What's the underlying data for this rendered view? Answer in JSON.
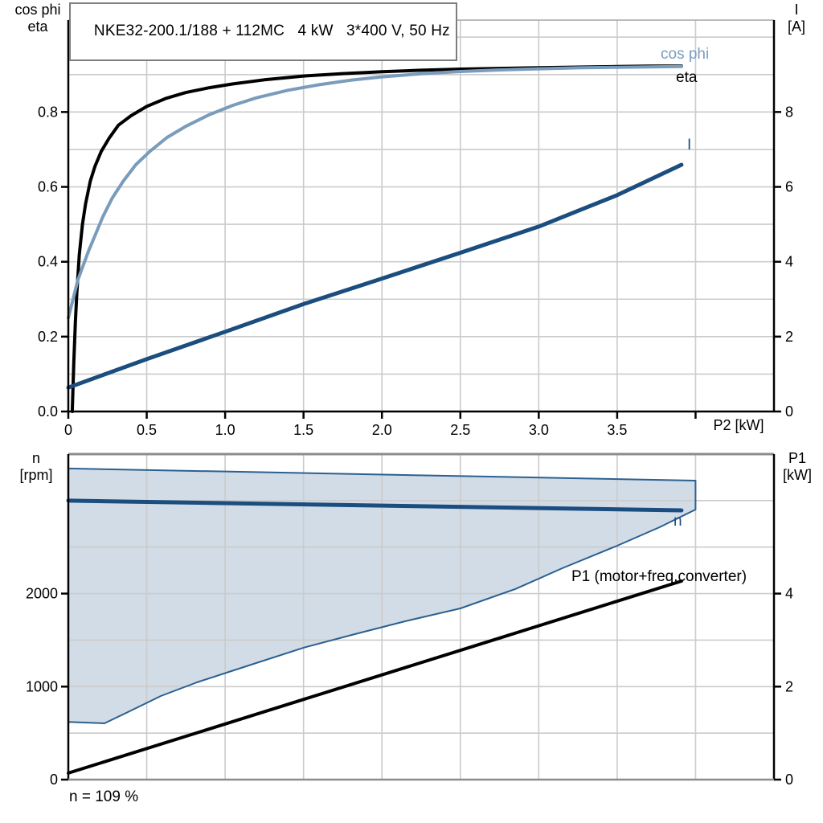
{
  "colors": {
    "steel_blue": "#7a9cbc",
    "navy": "#1b4d7f",
    "duty_fill": "#cfdae6",
    "duty_border": "#2b6090",
    "grid": "#cbcbcb",
    "axis_gray": "#8c8c8c",
    "black": "#000000"
  },
  "chart_data": [
    {
      "type": "line",
      "title": "NKE32-200.1/188 + 112MC   4 kW   3*400 V, 50 Hz",
      "x_axis": {
        "label": "P2 [kW]",
        "range": [
          0,
          4.5
        ],
        "grid_step": 0.5,
        "ticks": [
          {
            "v": 0,
            "t": "0"
          },
          {
            "v": 0.5,
            "t": "0.5"
          },
          {
            "v": 1,
            "t": "1.0"
          },
          {
            "v": 1.5,
            "t": "1.5"
          },
          {
            "v": 2,
            "t": "2.0"
          },
          {
            "v": 2.5,
            "t": "2.5"
          },
          {
            "v": 3,
            "t": "3.0"
          },
          {
            "v": 3.5,
            "t": "3.5"
          },
          {
            "v": 4,
            "t": ""
          }
        ]
      },
      "y_left": {
        "label_lines": [
          "cos phi",
          "eta"
        ],
        "range": [
          0,
          1.0455
        ],
        "grid_step": 0.1,
        "grid_max": 1.0,
        "ticks": [
          {
            "v": 0,
            "t": "0.0"
          },
          {
            "v": 0.2,
            "t": "0.2"
          },
          {
            "v": 0.4,
            "t": "0.4"
          },
          {
            "v": 0.6,
            "t": "0.6"
          },
          {
            "v": 0.8,
            "t": "0.8"
          }
        ]
      },
      "y_right": {
        "label_lines": [
          "I",
          "[A]"
        ],
        "range": [
          0,
          10.455
        ],
        "ticks": [
          {
            "v": 0,
            "t": "0"
          },
          {
            "v": 2,
            "t": "2"
          },
          {
            "v": 4,
            "t": "4"
          },
          {
            "v": 6,
            "t": "6"
          },
          {
            "v": 8,
            "t": "8"
          }
        ]
      },
      "series": [
        {
          "name": "eta",
          "label": "eta",
          "axis": "left",
          "color": "#000000",
          "width": 4,
          "points": [
            [
              0.025,
              0
            ],
            [
              0.035,
              0.13
            ],
            [
              0.045,
              0.24
            ],
            [
              0.055,
              0.32
            ],
            [
              0.07,
              0.42
            ],
            [
              0.09,
              0.5
            ],
            [
              0.11,
              0.555
            ],
            [
              0.14,
              0.615
            ],
            [
              0.17,
              0.655
            ],
            [
              0.21,
              0.695
            ],
            [
              0.26,
              0.73
            ],
            [
              0.32,
              0.765
            ],
            [
              0.4,
              0.79
            ],
            [
              0.5,
              0.815
            ],
            [
              0.62,
              0.836
            ],
            [
              0.75,
              0.852
            ],
            [
              0.9,
              0.865
            ],
            [
              1.05,
              0.875
            ],
            [
              1.25,
              0.886
            ],
            [
              1.5,
              0.896
            ],
            [
              1.75,
              0.9025
            ],
            [
              2.0,
              0.9075
            ],
            [
              2.25,
              0.9115
            ],
            [
              2.5,
              0.9145
            ],
            [
              2.75,
              0.9165
            ],
            [
              3.0,
              0.9185
            ],
            [
              3.25,
              0.92
            ],
            [
              3.5,
              0.9215
            ],
            [
              3.7,
              0.9225
            ],
            [
              3.91,
              0.923
            ]
          ]
        },
        {
          "name": "cos phi",
          "label": "cos phi",
          "axis": "left",
          "color": "#7a9cbc",
          "width": 4,
          "points": [
            [
              0,
              0.25
            ],
            [
              0.03,
              0.3
            ],
            [
              0.06,
              0.35
            ],
            [
              0.09,
              0.385
            ],
            [
              0.13,
              0.43
            ],
            [
              0.17,
              0.47
            ],
            [
              0.22,
              0.52
            ],
            [
              0.28,
              0.57
            ],
            [
              0.35,
              0.615
            ],
            [
              0.43,
              0.659
            ],
            [
              0.52,
              0.695
            ],
            [
              0.63,
              0.732
            ],
            [
              0.75,
              0.762
            ],
            [
              0.9,
              0.793
            ],
            [
              1.05,
              0.818
            ],
            [
              1.2,
              0.838
            ],
            [
              1.4,
              0.858
            ],
            [
              1.6,
              0.873
            ],
            [
              1.8,
              0.885
            ],
            [
              2.0,
              0.894
            ],
            [
              2.25,
              0.902
            ],
            [
              2.5,
              0.908
            ],
            [
              2.75,
              0.9125
            ],
            [
              3.0,
              0.9155
            ],
            [
              3.25,
              0.918
            ],
            [
              3.5,
              0.9195
            ],
            [
              3.7,
              0.9205
            ],
            [
              3.91,
              0.9215
            ]
          ]
        },
        {
          "name": "I",
          "label": "I",
          "axis": "right",
          "color": "#1b4d7f",
          "width": 5,
          "points": [
            [
              0,
              0.64
            ],
            [
              0.5,
              1.4
            ],
            [
              1.0,
              2.13
            ],
            [
              1.5,
              2.87
            ],
            [
              2.0,
              3.55
            ],
            [
              2.5,
              4.24
            ],
            [
              3.0,
              4.94
            ],
            [
              3.5,
              5.78
            ],
            [
              3.91,
              6.59
            ]
          ]
        }
      ]
    },
    {
      "type": "line+area",
      "footnote": "n = 109 %",
      "x_axis": {
        "label": "",
        "range": [
          0,
          4.5
        ],
        "grid_step": 0.5,
        "ticks": []
      },
      "y_left": {
        "label_lines": [
          "n",
          "[rpm]"
        ],
        "range": [
          0,
          3500
        ],
        "grid_step": 500,
        "grid_max": 3000,
        "ticks": [
          {
            "v": 0,
            "t": "0"
          },
          {
            "v": 1000,
            "t": "1000"
          },
          {
            "v": 2000,
            "t": "2000"
          }
        ]
      },
      "y_right": {
        "label_lines": [
          "P1",
          "[kW]"
        ],
        "range": [
          0,
          7
        ],
        "ticks": [
          {
            "v": 0,
            "t": "0"
          },
          {
            "v": 2,
            "t": "2"
          },
          {
            "v": 4,
            "t": "4"
          }
        ]
      },
      "duty_field": {
        "name": "speed-control-duty-field",
        "fill": "#cfdae6",
        "border": "#2b6090",
        "upper": [
          [
            0,
            3345
          ],
          [
            4,
            3215
          ]
        ],
        "lower": [
          [
            0,
            620
          ],
          [
            0.23,
            605
          ],
          [
            0.38,
            726
          ],
          [
            0.59,
            899
          ],
          [
            0.82,
            1046
          ],
          [
            1.15,
            1227
          ],
          [
            1.5,
            1418
          ],
          [
            1.81,
            1556
          ],
          [
            2.15,
            1703
          ],
          [
            2.5,
            1841
          ],
          [
            2.85,
            2049
          ],
          [
            3.15,
            2273
          ],
          [
            3.5,
            2515
          ],
          [
            3.77,
            2714
          ],
          [
            4.0,
            2904
          ]
        ]
      },
      "series": [
        {
          "name": "n",
          "label": "n",
          "axis": "left",
          "color": "#1b4d7f",
          "width": 5,
          "points": [
            [
              0,
              3000
            ],
            [
              3.91,
              2895
            ]
          ]
        },
        {
          "name": "P1",
          "label": "P1 (motor+freq.converter)",
          "axis": "right",
          "color": "#000000",
          "width": 4,
          "points": [
            [
              0,
              0.14
            ],
            [
              3.91,
              4.27
            ]
          ]
        }
      ]
    }
  ]
}
